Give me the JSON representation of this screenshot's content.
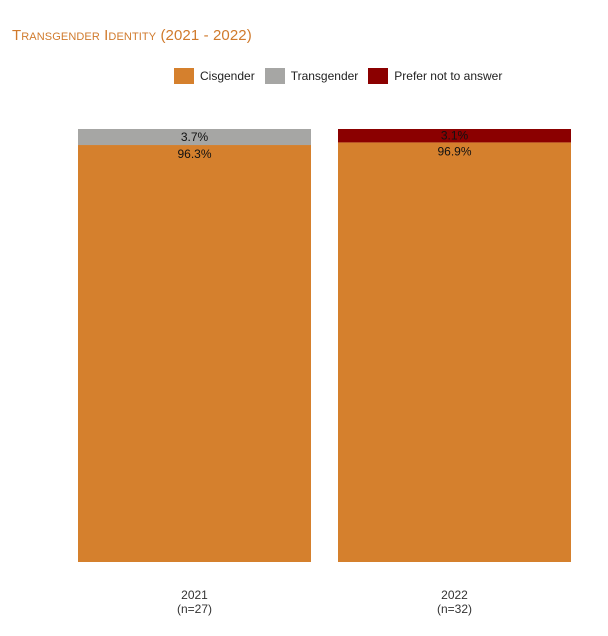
{
  "chart_data": {
    "type": "bar",
    "stacked": true,
    "percent": true,
    "title": "Transgender Identity (2021 - 2022)",
    "categories": [
      "2021",
      "2022"
    ],
    "category_sublabels": [
      "(n=27)",
      "(n=32)"
    ],
    "series": [
      {
        "name": "Cisgender",
        "color": "#d5802d",
        "values": [
          96.3,
          96.9
        ],
        "labels": [
          "96.3%",
          "96.9%"
        ]
      },
      {
        "name": "Transgender",
        "color": "#a6a6a4",
        "values": [
          3.7,
          0
        ],
        "labels": [
          "3.7%",
          ""
        ]
      },
      {
        "name": "Prefer not to answer",
        "color": "#8b0000",
        "values": [
          0,
          3.1
        ],
        "labels": [
          "",
          "3.1%"
        ]
      }
    ],
    "ylim": [
      0,
      100
    ],
    "legend_position": "top"
  }
}
